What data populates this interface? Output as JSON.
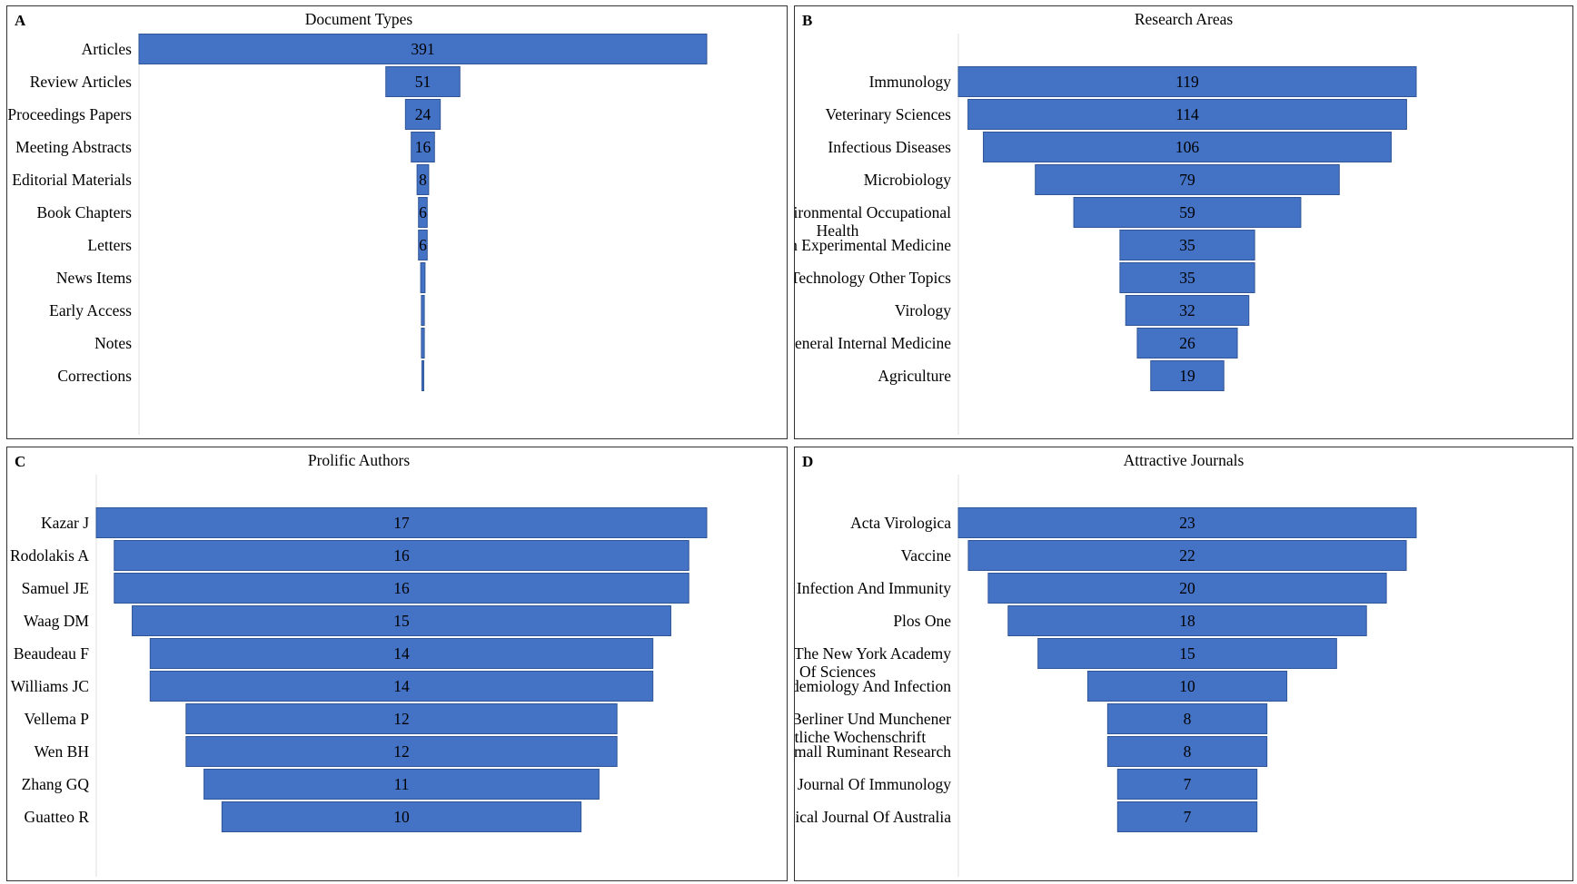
{
  "colors": {
    "bar": "#4472C4",
    "bar_edge": "#2F5597",
    "axis": "#e4e4e4"
  },
  "chart_data": [
    {
      "panel": "A",
      "type": "bar",
      "orientation": "horizontal-funnel",
      "title": "Document Types",
      "categories": [
        "Articles",
        "Review Articles",
        "Proceedings Papers",
        "Meeting Abstracts",
        "Editorial Materials",
        "Book Chapters",
        "Letters",
        "News Items",
        "Early Access",
        "Notes",
        "Corrections"
      ],
      "values": [
        391,
        51,
        24,
        16,
        8,
        6,
        6,
        3,
        2,
        2,
        1
      ],
      "data_labels": [
        "391",
        "51",
        "24",
        "16",
        "8",
        "6",
        "6",
        "",
        "",
        "",
        ""
      ],
      "label_lines": [
        [
          "Articles"
        ],
        [
          "Review Articles"
        ],
        [
          "Proceedings Papers"
        ],
        [
          "Meeting Abstracts"
        ],
        [
          "Editorial Materials"
        ],
        [
          "Book Chapters"
        ],
        [
          "Letters"
        ],
        [
          "News Items"
        ],
        [
          "Early Access"
        ],
        [
          "Notes"
        ],
        [
          "Corrections"
        ]
      ],
      "max": 391
    },
    {
      "panel": "B",
      "type": "bar",
      "orientation": "horizontal-funnel",
      "title": "Research Areas",
      "categories": [
        "Immunology",
        "Veterinary Sciences",
        "Infectious Diseases",
        "Microbiology",
        "Public Environmental Occupational Health",
        "Research Experimental Medicine",
        "Science Technology Other Topics",
        "Virology",
        "General Internal Medicine",
        "Agriculture"
      ],
      "values": [
        119,
        114,
        106,
        79,
        59,
        35,
        35,
        32,
        26,
        19
      ],
      "data_labels": [
        "119",
        "114",
        "106",
        "79",
        "59",
        "35",
        "35",
        "32",
        "26",
        "19"
      ],
      "label_lines": [
        [
          "Immunology"
        ],
        [
          "Veterinary Sciences"
        ],
        [
          "Infectious Diseases"
        ],
        [
          "Microbiology"
        ],
        [
          "Public Environmental Occupational",
          "Health"
        ],
        [
          "Research Experimental Medicine"
        ],
        [
          "Science Technology Other Topics"
        ],
        [
          "Virology"
        ],
        [
          "General Internal Medicine"
        ],
        [
          "Agriculture"
        ]
      ],
      "max": 119
    },
    {
      "panel": "C",
      "type": "bar",
      "orientation": "horizontal-funnel",
      "title": "Prolific Authors",
      "categories": [
        "Kazar J",
        "Rodolakis A",
        "Samuel JE",
        "Waag DM",
        "Beaudeau F",
        "Williams JC",
        "Vellema P",
        "Wen BH",
        "Zhang GQ",
        "Guatteo R"
      ],
      "values": [
        17,
        16,
        16,
        15,
        14,
        14,
        12,
        12,
        11,
        10
      ],
      "data_labels": [
        "17",
        "16",
        "16",
        "15",
        "14",
        "14",
        "12",
        "12",
        "11",
        "10"
      ],
      "label_lines": [
        [
          "Kazar J"
        ],
        [
          "Rodolakis A"
        ],
        [
          "Samuel JE"
        ],
        [
          "Waag DM"
        ],
        [
          "Beaudeau F"
        ],
        [
          "Williams JC"
        ],
        [
          "Vellema P"
        ],
        [
          "Wen BH"
        ],
        [
          "Zhang GQ"
        ],
        [
          "Guatteo R"
        ]
      ],
      "max": 17
    },
    {
      "panel": "D",
      "type": "bar",
      "orientation": "horizontal-funnel",
      "title": "Attractive Journals",
      "categories": [
        "Acta Virologica",
        "Vaccine",
        "Infection And Immunity",
        "Plos One",
        "Annals Of The New York Academy Of Sciences",
        "Epidemiology And Infection",
        "Berliner Und Munchener Tierarztliche Wochenschrift",
        "Small Ruminant Research",
        "Journal Of Immunology",
        "Medical Journal Of Australia"
      ],
      "values": [
        23,
        22,
        20,
        18,
        15,
        10,
        8,
        8,
        7,
        7
      ],
      "data_labels": [
        "23",
        "22",
        "20",
        "18",
        "15",
        "10",
        "8",
        "8",
        "7",
        "7"
      ],
      "label_lines": [
        [
          "Acta Virologica"
        ],
        [
          "Vaccine"
        ],
        [
          "Infection And Immunity"
        ],
        [
          "Plos One"
        ],
        [
          "Annals Of The New York Academy",
          "Of Sciences"
        ],
        [
          "Epidemiology And Infection"
        ],
        [
          "Berliner Und Munchener",
          "Tierarztliche Wochenschrift"
        ],
        [
          "Small Ruminant Research"
        ],
        [
          "Journal Of Immunology"
        ],
        [
          "Medical Journal Of Australia"
        ]
      ],
      "max": 23
    }
  ],
  "panels": [
    {
      "letter": "A"
    },
    {
      "letter": "B"
    },
    {
      "letter": "C"
    },
    {
      "letter": "D"
    }
  ]
}
